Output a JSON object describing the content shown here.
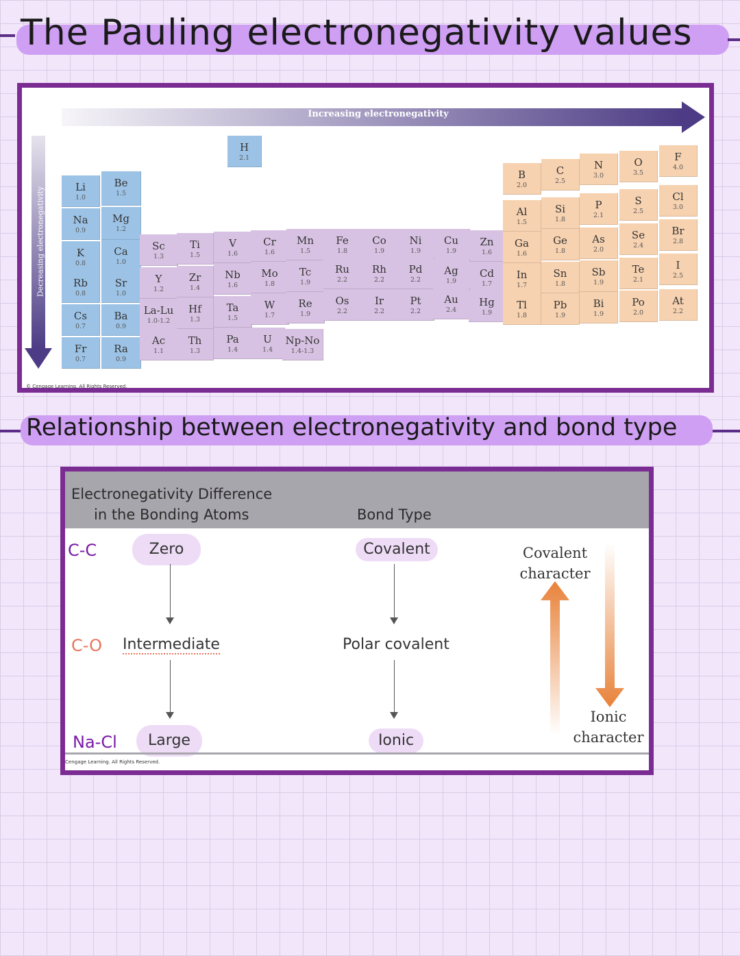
{
  "title": "The Pauling electronegativity values",
  "subtitle": "Relationship between electronegativity and bond type",
  "periodic_table": {
    "arrow_horizontal": "Increasing electronegativity",
    "arrow_vertical": "Decreasing electronegativity",
    "copyright": "© Cengage Learning. All Rights Reserved.",
    "elements": [
      {
        "symbol": "H",
        "value": "2.1"
      },
      {
        "symbol": "Li",
        "value": "1.0"
      },
      {
        "symbol": "Be",
        "value": "1.5"
      },
      {
        "symbol": "Na",
        "value": "0.9"
      },
      {
        "symbol": "Mg",
        "value": "1.2"
      },
      {
        "symbol": "K",
        "value": "0.8"
      },
      {
        "symbol": "Ca",
        "value": "1.0"
      },
      {
        "symbol": "Rb",
        "value": "0.8"
      },
      {
        "symbol": "Sr",
        "value": "1.0"
      },
      {
        "symbol": "Cs",
        "value": "0.7"
      },
      {
        "symbol": "Ba",
        "value": "0.9"
      },
      {
        "symbol": "Fr",
        "value": "0.7"
      },
      {
        "symbol": "Ra",
        "value": "0.9"
      },
      {
        "symbol": "Sc",
        "value": "1.3"
      },
      {
        "symbol": "Ti",
        "value": "1.5"
      },
      {
        "symbol": "V",
        "value": "1.6"
      },
      {
        "symbol": "Cr",
        "value": "1.6"
      },
      {
        "symbol": "Mn",
        "value": "1.5"
      },
      {
        "symbol": "Fe",
        "value": "1.8"
      },
      {
        "symbol": "Co",
        "value": "1.9"
      },
      {
        "symbol": "Ni",
        "value": "1.9"
      },
      {
        "symbol": "Cu",
        "value": "1.9"
      },
      {
        "symbol": "Zn",
        "value": "1.6"
      },
      {
        "symbol": "Y",
        "value": "1.2"
      },
      {
        "symbol": "Zr",
        "value": "1.4"
      },
      {
        "symbol": "Nb",
        "value": "1.6"
      },
      {
        "symbol": "Mo",
        "value": "1.8"
      },
      {
        "symbol": "Tc",
        "value": "1.9"
      },
      {
        "symbol": "Ru",
        "value": "2.2"
      },
      {
        "symbol": "Rh",
        "value": "2.2"
      },
      {
        "symbol": "Pd",
        "value": "2.2"
      },
      {
        "symbol": "Ag",
        "value": "1.9"
      },
      {
        "symbol": "Cd",
        "value": "1.7"
      },
      {
        "symbol": "La-Lu",
        "value": "1.0-1.2"
      },
      {
        "symbol": "Hf",
        "value": "1.3"
      },
      {
        "symbol": "Ta",
        "value": "1.5"
      },
      {
        "symbol": "W",
        "value": "1.7"
      },
      {
        "symbol": "Re",
        "value": "1.9"
      },
      {
        "symbol": "Os",
        "value": "2.2"
      },
      {
        "symbol": "Ir",
        "value": "2.2"
      },
      {
        "symbol": "Pt",
        "value": "2.2"
      },
      {
        "symbol": "Au",
        "value": "2.4"
      },
      {
        "symbol": "Hg",
        "value": "1.9"
      },
      {
        "symbol": "Ac",
        "value": "1.1"
      },
      {
        "symbol": "Th",
        "value": "1.3"
      },
      {
        "symbol": "Pa",
        "value": "1.4"
      },
      {
        "symbol": "U",
        "value": "1.4"
      },
      {
        "symbol": "Np-No",
        "value": "1.4-1.3"
      },
      {
        "symbol": "B",
        "value": "2.0"
      },
      {
        "symbol": "C",
        "value": "2.5"
      },
      {
        "symbol": "N",
        "value": "3.0"
      },
      {
        "symbol": "O",
        "value": "3.5"
      },
      {
        "symbol": "F",
        "value": "4.0"
      },
      {
        "symbol": "Al",
        "value": "1.5"
      },
      {
        "symbol": "Si",
        "value": "1.8"
      },
      {
        "symbol": "P",
        "value": "2.1"
      },
      {
        "symbol": "S",
        "value": "2.5"
      },
      {
        "symbol": "Cl",
        "value": "3.0"
      },
      {
        "symbol": "Ga",
        "value": "1.6"
      },
      {
        "symbol": "Ge",
        "value": "1.8"
      },
      {
        "symbol": "As",
        "value": "2.0"
      },
      {
        "symbol": "Se",
        "value": "2.4"
      },
      {
        "symbol": "Br",
        "value": "2.8"
      },
      {
        "symbol": "In",
        "value": "1.7"
      },
      {
        "symbol": "Sn",
        "value": "1.8"
      },
      {
        "symbol": "Sb",
        "value": "1.9"
      },
      {
        "symbol": "Te",
        "value": "2.1"
      },
      {
        "symbol": "I",
        "value": "2.5"
      },
      {
        "symbol": "Tl",
        "value": "1.8"
      },
      {
        "symbol": "Pb",
        "value": "1.9"
      },
      {
        "symbol": "Bi",
        "value": "1.9"
      },
      {
        "symbol": "Po",
        "value": "2.0"
      },
      {
        "symbol": "At",
        "value": "2.2"
      }
    ]
  },
  "bond_table": {
    "header_left_line1": "Electronegativity Difference",
    "header_left_line2": "in the Bonding Atoms",
    "header_right": "Bond Type",
    "rows": [
      {
        "pair": "C-C",
        "difference": "Zero",
        "bond_type": "Covalent"
      },
      {
        "pair": "C-O",
        "difference": "Intermediate",
        "bond_type": "Polar covalent"
      },
      {
        "pair": "Na-Cl",
        "difference": "Large",
        "bond_type": "Ionic"
      }
    ],
    "covalent_label_1": "Covalent",
    "covalent_label_2": "character",
    "ionic_label_1": "Ionic",
    "ionic_label_2": "character",
    "copyright": "Cengage Learning. All Rights Reserved."
  },
  "colors": {
    "frame": "#7b2c93",
    "heading_highlight": "#cf9ff3",
    "s_block": "#9cc3e6",
    "d_block": "#d8c2e3",
    "p_block": "#f7d2b0",
    "arrow": "#4d3c85",
    "handwriting_purple": "#7a1aa6",
    "handwriting_orange": "#e8745b",
    "character_arrow": "#e8823a"
  }
}
